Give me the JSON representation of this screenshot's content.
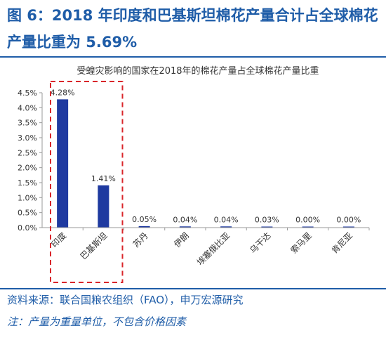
{
  "figure": {
    "title": "图 6：2018 年印度和巴基斯坦棉花产量合计占全球棉花产量比重为 5.69%",
    "source": "资料来源：联合国粮农组织（FAO），申万宏源研究",
    "note": "注：产量为重量单位，不包含价格因素"
  },
  "colors": {
    "bar": "#1f3aa0",
    "frame": "#d9252a",
    "text": "#1f5da8",
    "axis": "#9a9a9a"
  },
  "chart_data": {
    "type": "bar",
    "title": "受蝗灾影响的国家在2018年的棉花产量占全球棉花产量比重",
    "categories": [
      "印度",
      "巴基斯坦",
      "苏丹",
      "伊朗",
      "埃塞俄比亚",
      "乌干达",
      "索马里",
      "肯尼亚"
    ],
    "values": [
      4.28,
      1.41,
      0.05,
      0.04,
      0.04,
      0.03,
      0.0,
      0.0
    ],
    "data_labels": [
      "4.28%",
      "1.41%",
      "0.05%",
      "0.04%",
      "0.04%",
      "0.03%",
      "0.00%",
      "0.00%"
    ],
    "yticks": [
      "0.0%",
      "0.5%",
      "1.0%",
      "1.5%",
      "2.0%",
      "2.5%",
      "3.0%",
      "3.5%",
      "4.0%",
      "4.5%"
    ],
    "ylim": [
      0,
      4.5
    ],
    "highlight": [
      "印度",
      "巴基斯坦"
    ],
    "grid": false,
    "legend": "none"
  }
}
